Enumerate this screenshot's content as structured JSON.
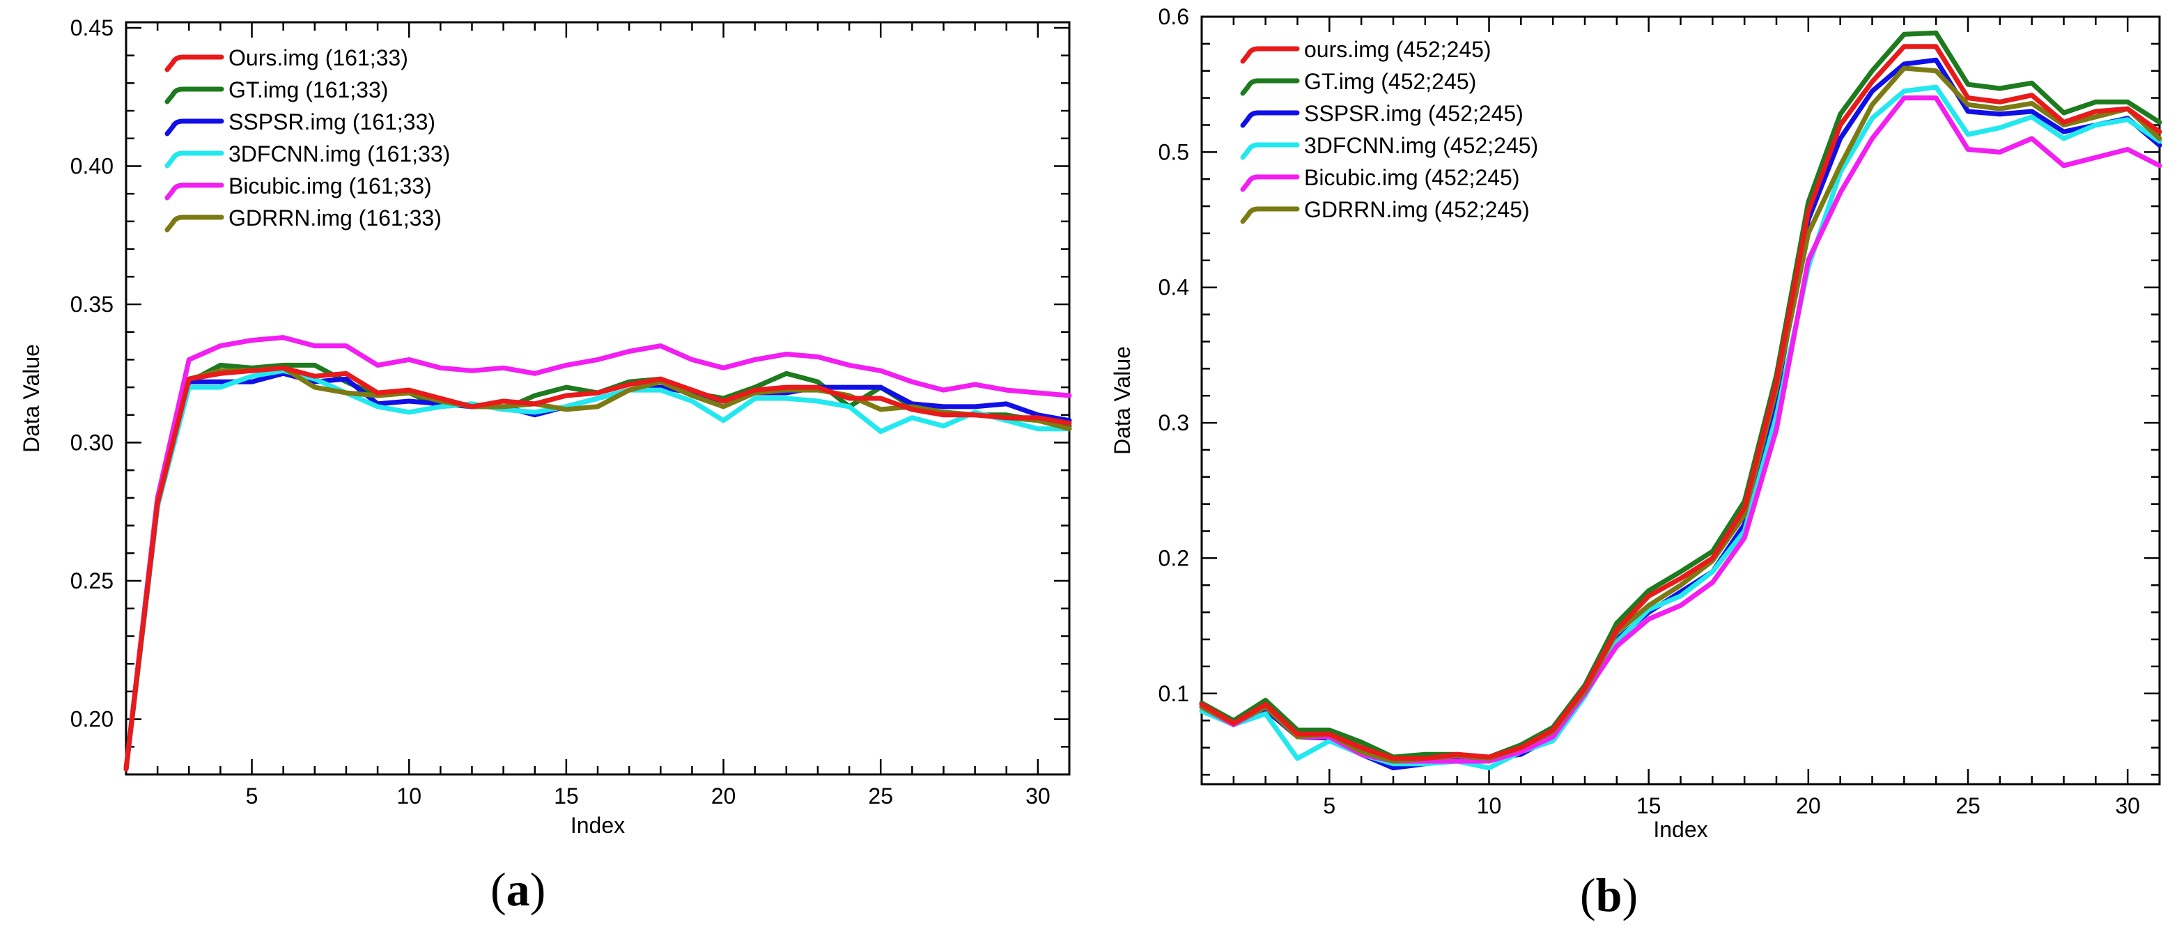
{
  "chart_data": [
    {
      "type": "line",
      "panel": "(a)",
      "title": "",
      "xlabel": "Index",
      "ylabel": "Data Value",
      "xlim": [
        1,
        31
      ],
      "ylim": [
        0.18,
        0.452
      ],
      "xticks": [
        5,
        10,
        15,
        20,
        25,
        30
      ],
      "xtick_labels": [
        "5",
        "10",
        "15",
        "20",
        "25",
        "30"
      ],
      "yticks": [
        0.2,
        0.25,
        0.3,
        0.35,
        0.4,
        0.45
      ],
      "ytick_labels": [
        "0.20",
        "0.25",
        "0.30",
        "0.35",
        "0.40",
        "0.45"
      ],
      "legend_position": "top-left",
      "x": [
        1,
        2,
        3,
        4,
        5,
        6,
        7,
        8,
        9,
        10,
        11,
        12,
        13,
        14,
        15,
        16,
        17,
        18,
        19,
        20,
        21,
        22,
        23,
        24,
        25,
        26,
        27,
        28,
        29,
        30,
        31
      ],
      "series": [
        {
          "name": "GT.img (161;33)",
          "color": "#1e7a1e",
          "values": [
            0.182,
            0.28,
            0.322,
            0.328,
            0.327,
            0.328,
            0.328,
            0.322,
            0.317,
            0.318,
            0.313,
            0.314,
            0.312,
            0.317,
            0.32,
            0.318,
            0.322,
            0.323,
            0.318,
            0.316,
            0.32,
            0.325,
            0.322,
            0.313,
            0.32,
            0.313,
            0.311,
            0.31,
            0.31,
            0.308,
            0.306
          ]
        },
        {
          "name": "SSPSR.img (161;33)",
          "color": "#1010e6",
          "values": [
            0.182,
            0.277,
            0.322,
            0.322,
            0.322,
            0.325,
            0.322,
            0.323,
            0.314,
            0.315,
            0.314,
            0.313,
            0.313,
            0.31,
            0.313,
            0.316,
            0.319,
            0.32,
            0.318,
            0.315,
            0.318,
            0.318,
            0.32,
            0.32,
            0.32,
            0.314,
            0.313,
            0.313,
            0.314,
            0.31,
            0.308
          ]
        },
        {
          "name": "3DFCNN.img (161;33)",
          "color": "#22e8ef",
          "values": [
            0.182,
            0.277,
            0.32,
            0.32,
            0.324,
            0.326,
            0.323,
            0.318,
            0.313,
            0.311,
            0.313,
            0.314,
            0.312,
            0.311,
            0.313,
            0.316,
            0.319,
            0.319,
            0.315,
            0.308,
            0.316,
            0.316,
            0.315,
            0.313,
            0.304,
            0.309,
            0.306,
            0.311,
            0.308,
            0.305,
            0.305
          ]
        },
        {
          "name": "Bicubic.img (161;33)",
          "color": "#f21ef2",
          "values": [
            0.182,
            0.28,
            0.33,
            0.335,
            0.337,
            0.338,
            0.335,
            0.335,
            0.328,
            0.33,
            0.327,
            0.326,
            0.327,
            0.325,
            0.328,
            0.33,
            0.333,
            0.335,
            0.33,
            0.327,
            0.33,
            0.332,
            0.331,
            0.328,
            0.326,
            0.322,
            0.319,
            0.321,
            0.319,
            0.318,
            0.317
          ]
        },
        {
          "name": "GDRRN.img (161;33)",
          "color": "#7c7a12",
          "values": [
            0.182,
            0.278,
            0.323,
            0.326,
            0.326,
            0.327,
            0.32,
            0.318,
            0.317,
            0.318,
            0.315,
            0.313,
            0.313,
            0.314,
            0.312,
            0.313,
            0.319,
            0.322,
            0.317,
            0.313,
            0.318,
            0.319,
            0.319,
            0.317,
            0.312,
            0.313,
            0.311,
            0.31,
            0.309,
            0.308,
            0.305
          ]
        },
        {
          "name": "Ours.img (161;33)",
          "color": "#e81a1a",
          "values": [
            0.182,
            0.278,
            0.323,
            0.325,
            0.326,
            0.327,
            0.324,
            0.325,
            0.318,
            0.319,
            0.316,
            0.313,
            0.315,
            0.314,
            0.317,
            0.318,
            0.321,
            0.323,
            0.319,
            0.315,
            0.319,
            0.32,
            0.32,
            0.316,
            0.316,
            0.312,
            0.31,
            0.31,
            0.309,
            0.309,
            0.307
          ]
        }
      ],
      "legend": [
        "Ours.img (161;33)",
        "GT.img (161;33)",
        "SSPSR.img (161;33)",
        "3DFCNN.img (161;33)",
        "Bicubic.img (161;33)",
        "GDRRN.img (161;33)"
      ]
    },
    {
      "type": "line",
      "panel": "(b)",
      "title": "",
      "xlabel": "Index",
      "ylabel": "Data Value",
      "xlim": [
        1,
        31
      ],
      "ylim": [
        0.033,
        0.6
      ],
      "xticks": [
        5,
        10,
        15,
        20,
        25,
        30
      ],
      "xtick_labels": [
        "5",
        "10",
        "15",
        "20",
        "25",
        "30"
      ],
      "yticks": [
        0.1,
        0.2,
        0.3,
        0.4,
        0.5,
        0.6
      ],
      "ytick_labels": [
        "0.1",
        "0.2",
        "0.3",
        "0.4",
        "0.5",
        "0.6"
      ],
      "legend_position": "top-left",
      "x": [
        1,
        2,
        3,
        4,
        5,
        6,
        7,
        8,
        9,
        10,
        11,
        12,
        13,
        14,
        15,
        16,
        17,
        18,
        19,
        20,
        21,
        22,
        23,
        24,
        25,
        26,
        27,
        28,
        29,
        30,
        31
      ],
      "series": [
        {
          "name": "GT.img (452;245)",
          "color": "#1e7a1e",
          "values": [
            0.093,
            0.08,
            0.095,
            0.073,
            0.073,
            0.064,
            0.053,
            0.055,
            0.055,
            0.053,
            0.062,
            0.075,
            0.106,
            0.152,
            0.176,
            0.19,
            0.205,
            0.242,
            0.335,
            0.463,
            0.528,
            0.56,
            0.587,
            0.588,
            0.55,
            0.547,
            0.551,
            0.529,
            0.537,
            0.537,
            0.522
          ]
        },
        {
          "name": "SSPSR.img (452;245)",
          "color": "#1010e6",
          "values": [
            0.09,
            0.077,
            0.088,
            0.068,
            0.067,
            0.055,
            0.045,
            0.048,
            0.053,
            0.052,
            0.055,
            0.068,
            0.1,
            0.14,
            0.16,
            0.175,
            0.19,
            0.225,
            0.32,
            0.45,
            0.51,
            0.545,
            0.565,
            0.568,
            0.53,
            0.528,
            0.53,
            0.515,
            0.52,
            0.525,
            0.505
          ]
        },
        {
          "name": "3DFCNN.img (452;245)",
          "color": "#22e8ef",
          "values": [
            0.087,
            0.077,
            0.085,
            0.052,
            0.065,
            0.055,
            0.048,
            0.048,
            0.05,
            0.045,
            0.057,
            0.065,
            0.098,
            0.138,
            0.162,
            0.172,
            0.19,
            0.22,
            0.305,
            0.415,
            0.485,
            0.525,
            0.545,
            0.548,
            0.513,
            0.518,
            0.526,
            0.51,
            0.52,
            0.524,
            0.508
          ]
        },
        {
          "name": "Bicubic.img (452;245)",
          "color": "#f21ef2",
          "values": [
            0.09,
            0.077,
            0.09,
            0.068,
            0.068,
            0.055,
            0.05,
            0.05,
            0.05,
            0.05,
            0.057,
            0.068,
            0.1,
            0.135,
            0.155,
            0.165,
            0.182,
            0.215,
            0.295,
            0.42,
            0.47,
            0.51,
            0.54,
            0.54,
            0.502,
            0.5,
            0.51,
            0.49,
            0.496,
            0.502,
            0.49
          ]
        },
        {
          "name": "GDRRN.img (452;245)",
          "color": "#7c7a12",
          "values": [
            0.09,
            0.078,
            0.09,
            0.068,
            0.07,
            0.057,
            0.05,
            0.052,
            0.054,
            0.052,
            0.06,
            0.072,
            0.102,
            0.145,
            0.165,
            0.18,
            0.198,
            0.232,
            0.325,
            0.44,
            0.49,
            0.535,
            0.562,
            0.56,
            0.535,
            0.532,
            0.536,
            0.52,
            0.526,
            0.532,
            0.51
          ]
        },
        {
          "name": "ours.img (452;245)",
          "color": "#e81a1a",
          "values": [
            0.092,
            0.078,
            0.092,
            0.07,
            0.07,
            0.06,
            0.052,
            0.052,
            0.055,
            0.053,
            0.06,
            0.073,
            0.104,
            0.147,
            0.172,
            0.185,
            0.2,
            0.237,
            0.33,
            0.456,
            0.52,
            0.552,
            0.578,
            0.578,
            0.54,
            0.537,
            0.542,
            0.522,
            0.53,
            0.532,
            0.515
          ]
        }
      ],
      "legend": [
        "ours.img (452;245)",
        "GT.img (452;245)",
        "SSPSR.img (452;245)",
        "3DFCNN.img (452;245)",
        "Bicubic.img (452;245)",
        "GDRRN.img (452;245)"
      ]
    }
  ],
  "captions": {
    "a": "a",
    "b": "b"
  }
}
